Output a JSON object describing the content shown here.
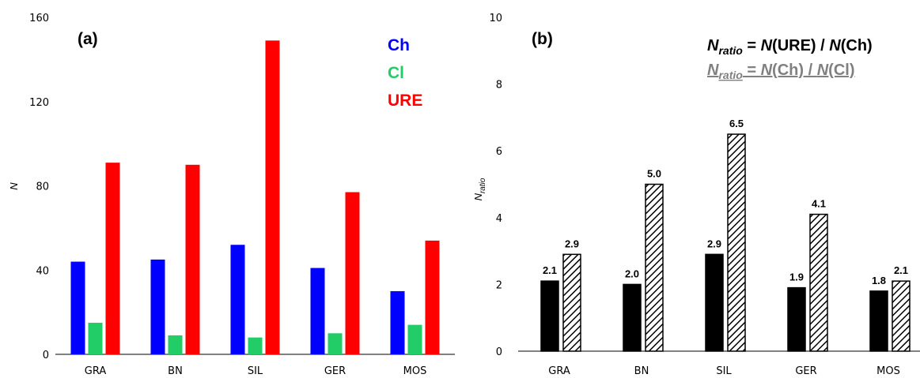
{
  "chart_data": [
    {
      "type": "bar",
      "panel_label": "(a)",
      "ylabel": "N",
      "ylim": [
        0,
        160
      ],
      "yticks": [
        "0",
        "40",
        "80",
        "120",
        "160"
      ],
      "categories": [
        "GRA",
        "BN",
        "SIL",
        "GER",
        "MOS"
      ],
      "series": [
        {
          "name": "Ch",
          "color": "#0000ff",
          "values": [
            44,
            45,
            52,
            41,
            30
          ]
        },
        {
          "name": "Cl",
          "color": "#22cc66",
          "values": [
            15,
            9,
            8,
            10,
            14
          ]
        },
        {
          "name": "URE",
          "color": "#ff0000",
          "values": [
            91,
            90,
            149,
            77,
            54
          ]
        }
      ],
      "legend_position": "top-right"
    },
    {
      "type": "bar",
      "panel_label": "(b)",
      "ylabel": "N_ratio",
      "ylabel_main": "N",
      "ylabel_sub": "ratio",
      "ylim": [
        0,
        10
      ],
      "yticks": [
        "0",
        "2",
        "4",
        "6",
        "8",
        "10"
      ],
      "categories": [
        "GRA",
        "BN",
        "SIL",
        "GER",
        "MOS"
      ],
      "series": [
        {
          "name": "N(URE) / N(Ch)",
          "color": "#000000",
          "style": "solid",
          "values": [
            2.1,
            2.0,
            2.9,
            1.9,
            1.8
          ],
          "labels": [
            "2.1",
            "2.0",
            "2.9",
            "1.9",
            "1.8"
          ]
        },
        {
          "name": "N(Ch) / N(Cl)",
          "color": "#000000",
          "style": "hatched",
          "values": [
            2.9,
            5.0,
            6.5,
            4.1,
            2.1
          ],
          "labels": [
            "2.9",
            "5.0",
            "6.5",
            "4.1",
            "2.1"
          ]
        }
      ],
      "legend": [
        {
          "color": "#000000",
          "underline": false,
          "parts": [
            "N",
            "ratio",
            " = ",
            "N",
            "(URE) / ",
            "N",
            "(Ch)"
          ]
        },
        {
          "color": "#808080",
          "underline": true,
          "parts": [
            "N",
            "ratio",
            " = ",
            "N",
            "(Ch) / ",
            "N",
            "(Cl)"
          ]
        }
      ],
      "legend_position": "top-right"
    }
  ]
}
